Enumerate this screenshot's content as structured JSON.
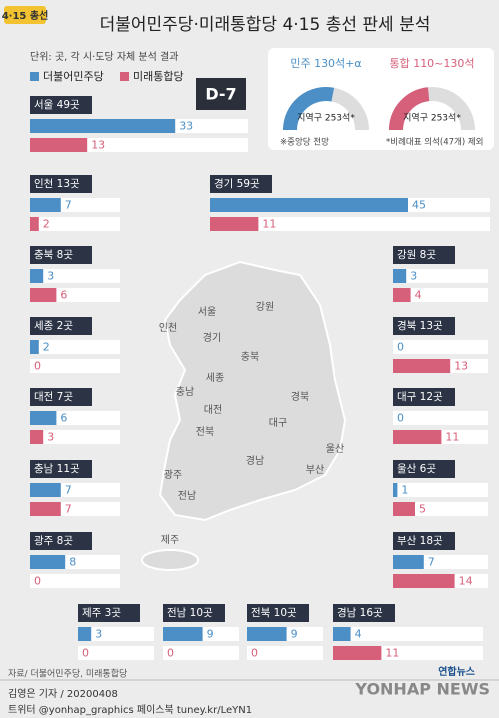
{
  "chart_data": {
    "type": "regional-bar",
    "tag": "4·15 총선",
    "title": "더불어민주당·미래통합당 4·15 총선 판세 분석",
    "subtitle": "단위: 곳, 각 시·도당 자체 분석 결과",
    "badge": "D-7",
    "categories": [
      "서울 49곳",
      "인천 13곳",
      "경기 59곳",
      "충북 8곳",
      "강원 8곳",
      "세종 2곳",
      "경북 13곳",
      "대전 7곳",
      "대구 12곳",
      "충남 11곳",
      "울산 6곳",
      "광주 8곳",
      "부산 18곳",
      "제주 3곳",
      "전남 10곳",
      "전북 10곳",
      "경남 16곳"
    ],
    "series": [
      {
        "name": "더불어민주당",
        "color": "#4b8fc6",
        "values": [
          33,
          7,
          45,
          3,
          3,
          2,
          0,
          6,
          0,
          7,
          1,
          8,
          7,
          3,
          9,
          9,
          4
        ]
      },
      {
        "name": "미래통합당",
        "color": "#d6607a",
        "values": [
          13,
          2,
          11,
          6,
          4,
          0,
          13,
          3,
          11,
          7,
          5,
          0,
          14,
          0,
          0,
          0,
          11
        ]
      }
    ],
    "outlook": [
      {
        "title": "민주 130석+α",
        "label": "지역구 253석*"
      },
      {
        "title": "통합 110~130석",
        "label": "지역구 253석*"
      }
    ],
    "outlook_notes": [
      "※중앙당 전망",
      "*비례대표 의석(47개) 제외"
    ],
    "map_labels": [
      "서울",
      "인천",
      "경기",
      "강원",
      "충북",
      "세종",
      "충남",
      "대전",
      "경북",
      "대구",
      "전북",
      "울산",
      "경남",
      "부산",
      "광주",
      "전남",
      "제주"
    ],
    "source": "자료/ 더불어민주당, 미래통합당",
    "credit": "김영은 기자 / 20200408",
    "social": "트위터 @yonhap_graphics  페이스북 tuney.kr/LeYN1",
    "brand": "연합뉴스",
    "brand_en": "YONHAP NEWS"
  }
}
